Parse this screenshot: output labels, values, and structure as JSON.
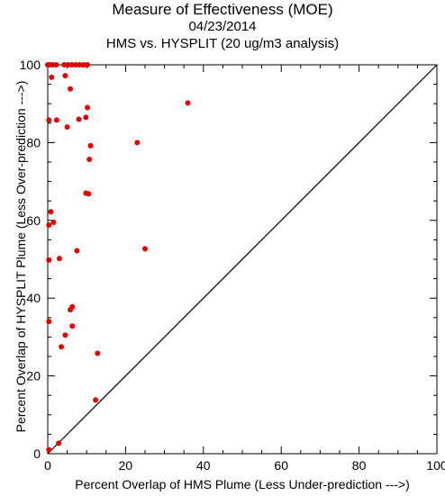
{
  "chart_data": {
    "type": "scatter",
    "title": "Measure of Effectiveness (MOE)",
    "subtitle_date": "04/23/2014",
    "subtitle_analysis": "HMS vs. HYSPLIT  (20 ug/m3 analysis)",
    "xlabel": "Percent Overlap of HMS Plume (Less Under-prediction --->)",
    "ylabel": "Percent Overlap of HYSPLIT Plume (Less Over-prediction --->)",
    "xlim": [
      0,
      100
    ],
    "ylim": [
      0,
      100
    ],
    "xticks": [
      0,
      20,
      40,
      60,
      80,
      100
    ],
    "yticks": [
      0,
      20,
      40,
      60,
      80,
      100
    ],
    "grid": false,
    "reference_line": "y = x",
    "point_color": "#e00000",
    "points": [
      {
        "x": 0.0,
        "y": 100.0
      },
      {
        "x": 0.5,
        "y": 100.0
      },
      {
        "x": 1.2,
        "y": 100.0
      },
      {
        "x": 2.2,
        "y": 100.0
      },
      {
        "x": 4.2,
        "y": 100.0
      },
      {
        "x": 5.2,
        "y": 100.0
      },
      {
        "x": 6.2,
        "y": 100.0
      },
      {
        "x": 7.2,
        "y": 100.0
      },
      {
        "x": 8.2,
        "y": 100.0
      },
      {
        "x": 9.2,
        "y": 100.0
      },
      {
        "x": 10.2,
        "y": 100.0
      },
      {
        "x": 1.0,
        "y": 96.8
      },
      {
        "x": 4.5,
        "y": 97.2
      },
      {
        "x": 5.8,
        "y": 93.8
      },
      {
        "x": 36.0,
        "y": 90.2
      },
      {
        "x": 10.2,
        "y": 89.0
      },
      {
        "x": 9.8,
        "y": 86.5
      },
      {
        "x": 8.0,
        "y": 86.0
      },
      {
        "x": 0.3,
        "y": 85.8
      },
      {
        "x": 2.3,
        "y": 85.8
      },
      {
        "x": 5.0,
        "y": 84.0
      },
      {
        "x": 23.0,
        "y": 80.0
      },
      {
        "x": 11.0,
        "y": 79.2
      },
      {
        "x": 10.7,
        "y": 75.7
      },
      {
        "x": 9.8,
        "y": 67.0
      },
      {
        "x": 10.5,
        "y": 66.8
      },
      {
        "x": 0.8,
        "y": 62.2
      },
      {
        "x": 1.5,
        "y": 59.5
      },
      {
        "x": 0.3,
        "y": 58.8
      },
      {
        "x": 25.0,
        "y": 52.7
      },
      {
        "x": 7.5,
        "y": 52.2
      },
      {
        "x": 3.0,
        "y": 50.2
      },
      {
        "x": 0.3,
        "y": 49.8
      },
      {
        "x": 6.3,
        "y": 37.8
      },
      {
        "x": 5.8,
        "y": 37.0
      },
      {
        "x": 0.3,
        "y": 34.0
      },
      {
        "x": 6.3,
        "y": 32.8
      },
      {
        "x": 4.5,
        "y": 30.5
      },
      {
        "x": 3.5,
        "y": 27.5
      },
      {
        "x": 12.8,
        "y": 25.8
      },
      {
        "x": 12.3,
        "y": 13.8
      },
      {
        "x": 2.8,
        "y": 2.7
      },
      {
        "x": 0.3,
        "y": 1.0
      }
    ]
  }
}
